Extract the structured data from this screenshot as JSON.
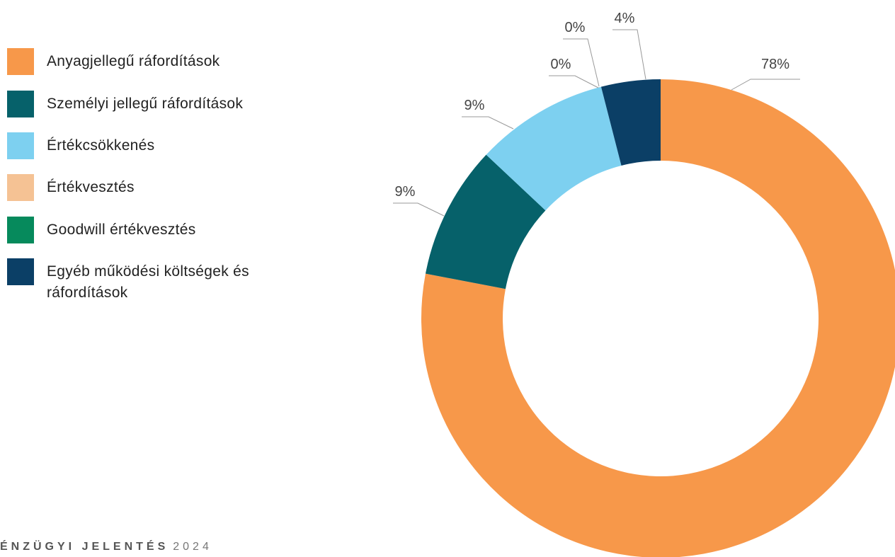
{
  "chart_data": {
    "type": "donut",
    "categories": [
      "Anyagjellegű ráfordítások",
      "Személyi jellegű ráfordítások",
      "Értékcsökkenés",
      "Értékvesztés",
      "Goodwill értékvesztés",
      "Egyéb működési költségek és ráfordítások"
    ],
    "values": [
      78,
      9,
      9,
      0,
      0,
      4
    ],
    "value_labels": [
      "78%",
      "9%",
      "9%",
      "0%",
      "0%",
      "4%"
    ],
    "colors": [
      "#f7984a",
      "#06616a",
      "#7dd0f0",
      "#f5c294",
      "#068a5c",
      "#0b3f66"
    ],
    "legend": "top-left"
  },
  "footer": {
    "title": "ÉNZÜGYI JELENTÉS",
    "year": "2024"
  }
}
